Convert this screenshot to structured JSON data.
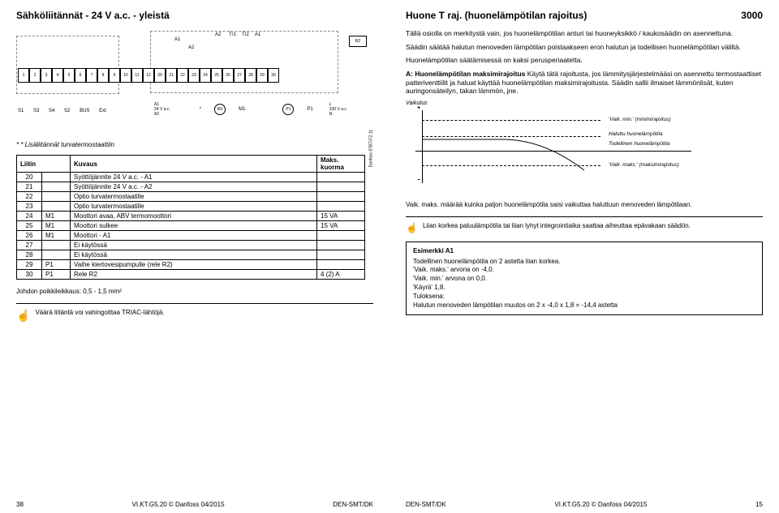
{
  "left": {
    "title": "Sähköliitännät - 24 V a.c. - yleistä",
    "diagram": {
      "leftTerms": [
        "1",
        "2",
        "3",
        "4",
        "5",
        "6",
        "7",
        "8",
        "9",
        "10",
        "11",
        "12"
      ],
      "rightTerms": [
        "20",
        "21",
        "22",
        "23",
        "24",
        "25",
        "26",
        "27",
        "28",
        "29",
        "30"
      ],
      "a1": "A1",
      "a2": "A2",
      "tr1": "Tr1",
      "tr2": "Tr2",
      "r2": "R2",
      "bot_s1": "S1",
      "bot_s3": "S3",
      "bot_s4": "S4",
      "bot_s2": "S2",
      "bot_bus": "BUS",
      "bot_ext": "Ext",
      "r_a1": "A1",
      "r_24v": "24 V a.c.",
      "r_a2": "A2",
      "r_m1": "M1",
      "r_p1": "P1",
      "r_l": "L",
      "r_230": "230 V a.c.",
      "r_n": "N",
      "side": "Danfoss 87B7072.11"
    },
    "footnote": "* * Lisäliitännät turvatermostaattiin",
    "table": {
      "headers": {
        "liitin": "Liitin",
        "kuvaus": "Kuvaus",
        "maks": "Maks. kuorma"
      },
      "rows": [
        {
          "n": "20",
          "m": "",
          "d": "Syöttöjännite 24 V a.c.  - A1",
          "l": ""
        },
        {
          "n": "21",
          "m": "",
          "d": "Syöttöjännite 24 V a.c.  - A2",
          "l": ""
        },
        {
          "n": "22",
          "m": "",
          "d": "Optio turvatermostaatille",
          "l": ""
        },
        {
          "n": "23",
          "m": "",
          "d": "Optio turvatermostaatille",
          "l": ""
        },
        {
          "n": "24",
          "m": "M1",
          "d": "Moottori avaa, ABV termomoottori",
          "l": "15 VA"
        },
        {
          "n": "25",
          "m": "M1",
          "d": "Moottori sulkee",
          "l": "15 VA"
        },
        {
          "n": "26",
          "m": "M1",
          "d": "Moottori - A1",
          "l": ""
        },
        {
          "n": "27",
          "m": "",
          "d": "Ei käytössä",
          "l": ""
        },
        {
          "n": "28",
          "m": "",
          "d": "Ei käytössä",
          "l": ""
        },
        {
          "n": "29",
          "m": "P1",
          "d": "Vaihe kiertovesipumpulle (rele R2)",
          "l": ""
        },
        {
          "n": "30",
          "m": "P1",
          "d": "Rele R2",
          "l": "4 (2) A"
        }
      ]
    },
    "crossSection": "Johdon poikkileikkaus:  0,5 - 1,5 mm²",
    "warning": "Väärä liitäntä voi vahingoittaa TRIAC-lähtöjä.",
    "footer": {
      "pg": "38",
      "code": "VI.KT.G5.20 © Danfoss 04/2015",
      "den": "DEN-SMT/DK"
    }
  },
  "right": {
    "title": "Huone T raj. (huonelämpötilan rajoitus)",
    "topNum": "3000",
    "p1": "Tällä osiolla on merkitystä vain, jos huonelämpötilan anturi tai huoneyksikkö / kaukosäädin on asennettuna.",
    "p2": "Säädin säätää halutun menoveden lämpötilan poistaakseen eron halutun ja todellisen huonelämpötilan väliltä.",
    "p3": "Huonelämpötilan säätämisessä on kaksi perusperiaatetta.",
    "aHeading": "A: Huonelämpötilan maksimirajoitus",
    "p4": "Käytä tätä rajoitusta, jos lämmitysjärjestelmääsi on asennettu termostaattiset patteriventtiilit ja haluat käyttää huonelämpötilan maksimirajoitusta. Säädin sallii ilmaiset lämmönlisät, kuten auringonsäteilyn, takan lämmön, jne.",
    "graph": {
      "title": "Vaikutus",
      "l1": "'Vaik. min.' (minimirajoitus)",
      "l2": "Haluttu huonelämpötila",
      "l3": "Todellinen huonelämpötila",
      "l4": "'Vaik. maks.' (maksimirajoitus)"
    },
    "caption": "Vaik. maks. määrää kuinka paljon huonelämpötila saisi vaikuttaa haluttuun menoveden lämpötilaan.",
    "warnSmall": "Liian korkea paluulämpötila tai liian lyhyt integrointiaika saattaa aiheuttaa epävakaan säädön.",
    "example": {
      "head": "Esimerkki A1",
      "l1": "Todellinen huonelämpötila on 2 astetta liian korkea.",
      "l2": "'Vaik. maks.' arvona on -4,0.",
      "l3": "'Vaik. min.' arvona on 0,0.",
      "l4": "'Käyrä' 1,8.",
      "l5": "Tuloksena:",
      "l6": "Halutun menoveden lämpötilan muutos on 2 x -4,0 x 1,8 = -14,4 astetta"
    },
    "footer": {
      "den": "DEN-SMT/DK",
      "code": "VI.KT.G5.20 © Danfoss 04/2015",
      "pg": "15"
    }
  }
}
